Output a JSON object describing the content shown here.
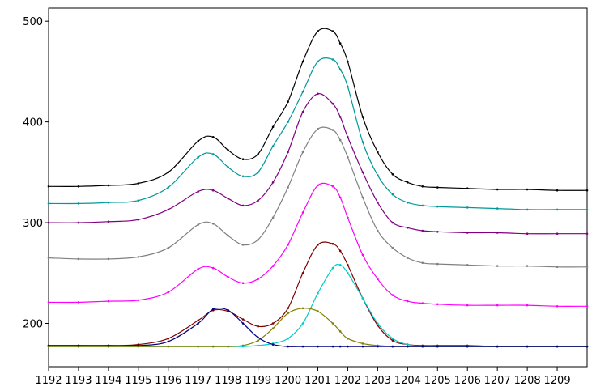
{
  "chart_data": {
    "type": "line",
    "title": "",
    "xlabel": "",
    "ylabel": "",
    "xlim": [
      1192,
      1210
    ],
    "ylim": [
      157,
      513
    ],
    "grid": false,
    "x_ticks": [
      "1192",
      "1193",
      "1194",
      "1195",
      "1196",
      "1197",
      "1198",
      "1199",
      "1200",
      "1201",
      "1202",
      "1203",
      "1204",
      "1205",
      "1206",
      "1207",
      "1208",
      "1209"
    ],
    "y_ticks": [
      "200",
      "300",
      "400",
      "500"
    ],
    "x": [
      1192,
      1193,
      1194,
      1195,
      1196,
      1197,
      1197.5,
      1198,
      1198.5,
      1199,
      1199.5,
      1200,
      1200.5,
      1201,
      1201.5,
      1201.75,
      1202,
      1202.5,
      1203,
      1203.5,
      1204,
      1204.5,
      1205,
      1206,
      1207,
      1208,
      1209,
      1210
    ],
    "series": [
      {
        "color": "#000000",
        "values": [
          336,
          336,
          337,
          339,
          350,
          381,
          385,
          372,
          363,
          368,
          395,
          420,
          460,
          490,
          490,
          478,
          460,
          405,
          370,
          348,
          340,
          336,
          335,
          334,
          333,
          333,
          332,
          332
        ]
      },
      {
        "color": "#009999",
        "values": [
          319,
          319,
          320,
          322,
          335,
          365,
          368,
          355,
          346,
          350,
          376,
          400,
          430,
          460,
          462,
          452,
          435,
          380,
          347,
          328,
          320,
          317,
          316,
          315,
          314,
          313,
          313,
          313
        ]
      },
      {
        "color": "#800080",
        "values": [
          300,
          300,
          301,
          303,
          313,
          331,
          332,
          324,
          317,
          322,
          340,
          370,
          410,
          428,
          418,
          405,
          385,
          350,
          320,
          300,
          295,
          292,
          291,
          290,
          290,
          289,
          289,
          289
        ]
      },
      {
        "color": "#808080",
        "values": [
          265,
          264,
          264,
          266,
          275,
          298,
          299,
          287,
          278,
          283,
          305,
          335,
          370,
          393,
          392,
          382,
          365,
          325,
          292,
          275,
          265,
          260,
          259,
          258,
          257,
          257,
          256,
          256
        ]
      },
      {
        "color": "#ff00ff",
        "values": [
          221,
          221,
          222,
          223,
          231,
          254,
          255,
          246,
          240,
          244,
          257,
          278,
          310,
          337,
          336,
          325,
          305,
          268,
          244,
          228,
          222,
          220,
          219,
          218,
          218,
          218,
          217,
          217
        ]
      },
      {
        "color": "#800000",
        "values": [
          178,
          178,
          178,
          179,
          185,
          203,
          213,
          212,
          204,
          197,
          200,
          215,
          250,
          278,
          279,
          272,
          258,
          225,
          198,
          183,
          179,
          178,
          178,
          178,
          177,
          177,
          177,
          177
        ]
      },
      {
        "color": "#00cccc",
        "values": [
          177,
          177,
          177,
          177,
          177,
          177,
          177,
          177,
          177,
          178,
          180,
          185,
          200,
          230,
          255,
          258,
          250,
          225,
          200,
          185,
          179,
          177,
          177,
          177,
          177,
          177,
          177,
          177
        ]
      },
      {
        "color": "#808000",
        "values": [
          177,
          177,
          177,
          177,
          177,
          177,
          177,
          177,
          178,
          183,
          195,
          210,
          215,
          212,
          200,
          192,
          185,
          180,
          178,
          177,
          177,
          177,
          177,
          177,
          177,
          177,
          177,
          177
        ]
      },
      {
        "color": "#000080",
        "values": [
          178,
          178,
          178,
          178,
          182,
          200,
          214,
          213,
          200,
          186,
          179,
          177,
          177,
          177,
          177,
          177,
          177,
          177,
          177,
          177,
          177,
          177,
          177,
          177,
          177,
          177,
          177,
          177
        ]
      }
    ]
  }
}
